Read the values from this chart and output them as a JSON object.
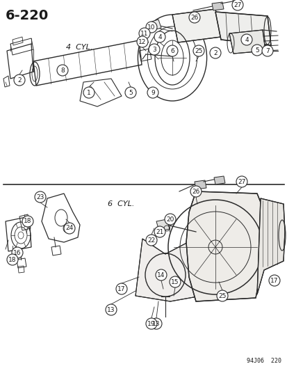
{
  "title": "6−220",
  "stamp": "94J06  220",
  "label_4cyl": "4  CYL.",
  "label_6cyl": "6  CYL.",
  "bg_color": "#f5f5f0",
  "line_color": "#2a2a2a",
  "text_color": "#1a1a1a",
  "figsize": [
    4.14,
    5.33
  ],
  "dpi": 100
}
